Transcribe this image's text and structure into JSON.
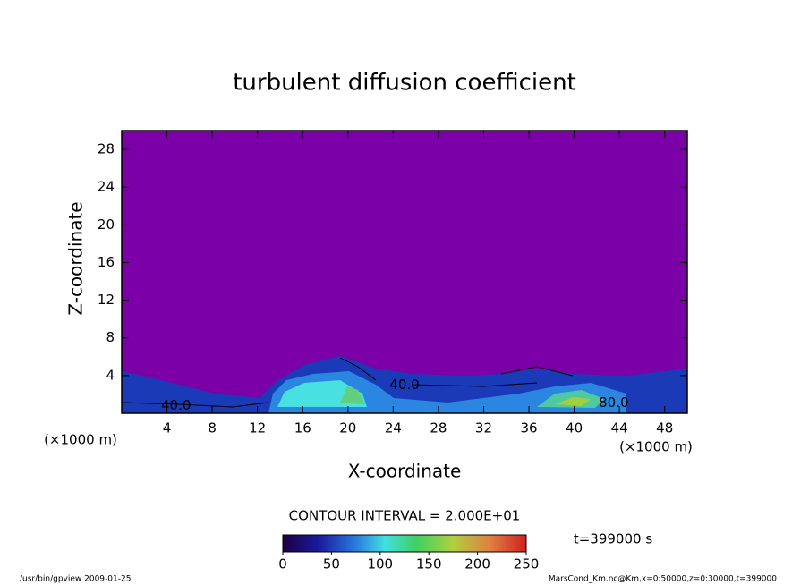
{
  "chart_data": {
    "type": "contour",
    "title": "turbulent diffusion coefficient",
    "x_label": "X-coordinate",
    "y_label": "Z-coordinate",
    "x_unit_left": "(×1000 m)",
    "x_unit_right": "(×1000 m)",
    "xlim": [
      0,
      50
    ],
    "xticks": [
      4,
      8,
      12,
      16,
      20,
      24,
      28,
      32,
      36,
      40,
      44,
      48
    ],
    "ylim": [
      0,
      30
    ],
    "yticks": [
      4,
      8,
      12,
      16,
      20,
      24,
      28
    ],
    "background_color": "#7c00a8",
    "contour_labels": [
      {
        "text": "40.0",
        "x": 25,
        "y": 3
      },
      {
        "text": "80.0",
        "x": 43.5,
        "y": 1.1
      },
      {
        "text": "40.0",
        "x": 4.8,
        "y": 0.8
      }
    ],
    "contour_interval": "CONTOUR INTERVAL = 2.000E+01",
    "time_label": "t=399000 s",
    "colorbar": {
      "lim": [
        0,
        250
      ],
      "ticks": [
        0,
        50,
        100,
        150,
        200,
        250
      ]
    },
    "footer_left": "/usr/bin/gpview  2009-01-25",
    "footer_right": "MarsCond_Km.nc@Km,x=0:50000,z=0:30000,t=399000"
  }
}
